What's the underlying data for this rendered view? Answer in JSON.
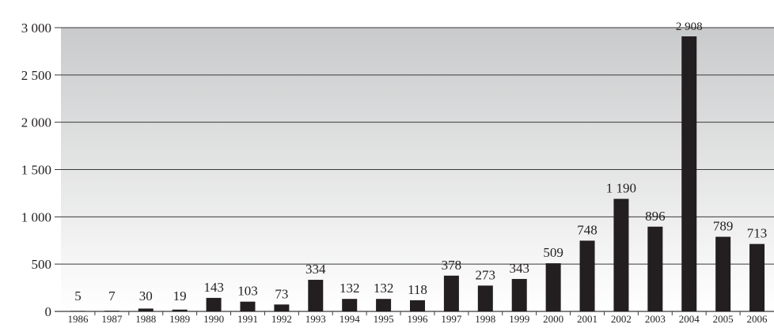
{
  "chart_data": {
    "type": "bar",
    "title": "",
    "xlabel": "",
    "ylabel": "",
    "categories": [
      "1986",
      "1987",
      "1988",
      "1989",
      "1990",
      "1991",
      "1992",
      "1993",
      "1994",
      "1995",
      "1996",
      "1997",
      "1998",
      "1999",
      "2000",
      "2001",
      "2002",
      "2003",
      "2004",
      "2005",
      "2006"
    ],
    "values": [
      5,
      7,
      30,
      19,
      143,
      103,
      73,
      334,
      132,
      132,
      118,
      378,
      273,
      343,
      509,
      748,
      1190,
      896,
      2908,
      789,
      713
    ],
    "value_labels": [
      "5",
      "7",
      "30",
      "19",
      "143",
      "103",
      "73",
      "334",
      "132",
      "132",
      "118",
      "378",
      "273",
      "343",
      "509",
      "748",
      "1 190",
      "896",
      "2 908",
      "789",
      "713"
    ],
    "ylim": [
      0,
      3000
    ],
    "yticks": [
      0,
      500,
      1000,
      1500,
      2000,
      2500,
      3000
    ],
    "ytick_labels": [
      "0",
      "500",
      "1 000",
      "1 500",
      "2 000",
      "2 500",
      "3 000"
    ],
    "grid": true,
    "legend": "none",
    "colors": {
      "bar": "#231f20",
      "background_top": "#c9cacb",
      "background_bottom": "#ffffff",
      "grid": "#3a3a3a",
      "text": "#231f20"
    }
  }
}
